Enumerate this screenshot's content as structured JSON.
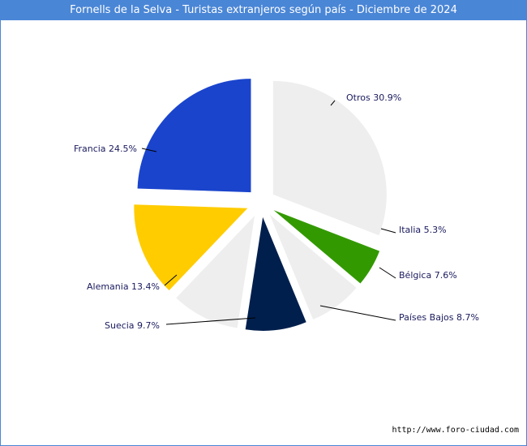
{
  "header": {
    "title": "Fornells de la Selva - Turistas extranjeros según país - Diciembre de 2024"
  },
  "footer": {
    "url": "http://www.foro-ciudad.com"
  },
  "chart_data": {
    "type": "pie",
    "title": "Fornells de la Selva - Turistas extranjeros según país - Diciembre de 2024",
    "slices": [
      {
        "name": "Otros",
        "value": 30.9,
        "label": "Otros 30.9%",
        "color": "#eeeeee"
      },
      {
        "name": "Italia",
        "value": 5.3,
        "label": "Italia 5.3%",
        "color": "#339900"
      },
      {
        "name": "Bélgica",
        "value": 7.6,
        "label": "Bélgica 7.6%",
        "color": "#eeeeee"
      },
      {
        "name": "Países Bajos",
        "value": 8.7,
        "label": "Países Bajos 8.7%",
        "color": "#001f4d"
      },
      {
        "name": "Suecia",
        "value": 9.7,
        "label": "Suecia 9.7%",
        "color": "#eeeeee"
      },
      {
        "name": "Alemania",
        "value": 13.4,
        "label": "Alemania 13.4%",
        "color": "#ffcc00"
      },
      {
        "name": "Francia",
        "value": 24.5,
        "label": "Francia 24.5%",
        "color": "#1a44cc"
      }
    ]
  }
}
